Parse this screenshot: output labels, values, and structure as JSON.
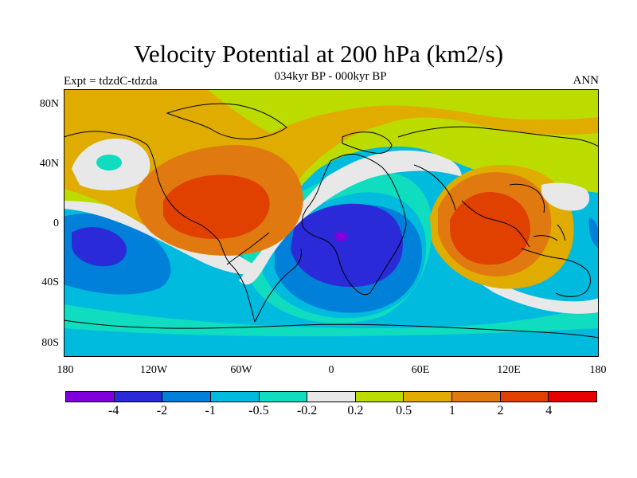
{
  "title": "Velocity Potential at 200 hPa (km2/s)",
  "subtitle": "034kyr BP - 000kyr BP",
  "left_label": "Expt = tdzdC-tdzda",
  "right_label": "ANN",
  "lat_labels": [
    "80N",
    "40N",
    "0",
    "40S",
    "80S"
  ],
  "lon_labels": [
    "180",
    "120W",
    "60W",
    "0",
    "60E",
    "120E",
    "180"
  ],
  "colorbar": {
    "colors": [
      "#7f00dd",
      "#2a2ad8",
      "#0080d8",
      "#00bbdd",
      "#10dcc0",
      "#e8e8e8",
      "#bcdc00",
      "#e0ac00",
      "#e07a10",
      "#e04000",
      "#e60000"
    ],
    "labels": [
      "-4",
      "-2",
      "-1",
      "-0.5",
      "-0.2",
      "0.2",
      "0.5",
      "1",
      "2",
      "4"
    ]
  },
  "palette": {
    "n4": "#7f00dd",
    "n3": "#2a2ad8",
    "n2": "#0080d8",
    "n1": "#00bbdd",
    "n0": "#10dcc0",
    "z": "#e8e8e8",
    "p1": "#bcdc00",
    "p2": "#e0ac00",
    "p3": "#e07a10",
    "p4": "#e04000",
    "p5": "#e60000"
  }
}
